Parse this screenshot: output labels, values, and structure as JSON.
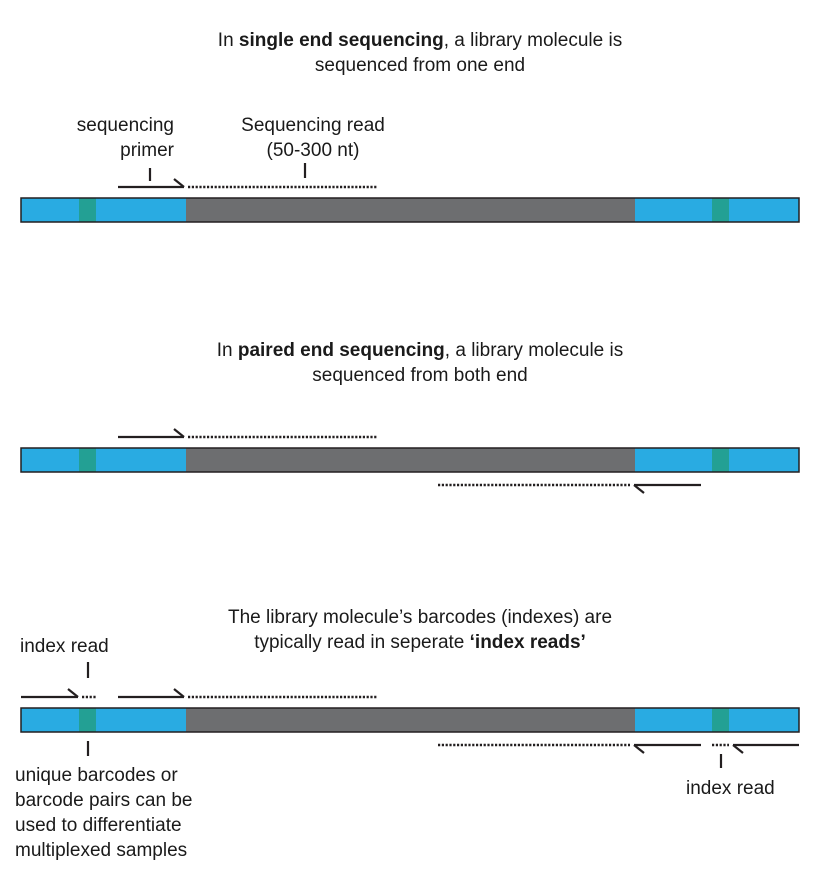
{
  "colors": {
    "adapter": "#29abe2",
    "insert": "#6d6e70",
    "barcode": "#23a094",
    "outline": "#231f20",
    "line": "#231f20"
  },
  "section1": {
    "title_pre": "In ",
    "title_bold": "single end sequencing",
    "title_post": ", a library molecule is",
    "title_line2": "sequenced from one end",
    "primer_line1": "sequencing",
    "primer_line2": "primer",
    "read_line1": "Sequencing read",
    "read_line2": "(50-300 nt)"
  },
  "section2": {
    "title_pre": "In ",
    "title_bold": "paired end sequencing",
    "title_post": ", a library molecule is",
    "title_line2": "sequenced from both end"
  },
  "section3": {
    "title_line1": "The library molecule’s barcodes (indexes) are",
    "title_line2_pre": "typically read in seperate ",
    "title_line2_bold": "‘index reads’",
    "index_read_left": "index read",
    "index_read_right": "index read",
    "barcode_note_1": "unique barcodes or",
    "barcode_note_2": "barcode pairs can be",
    "barcode_note_3": "used to differentiate",
    "barcode_note_4": "multiplexed samples"
  }
}
